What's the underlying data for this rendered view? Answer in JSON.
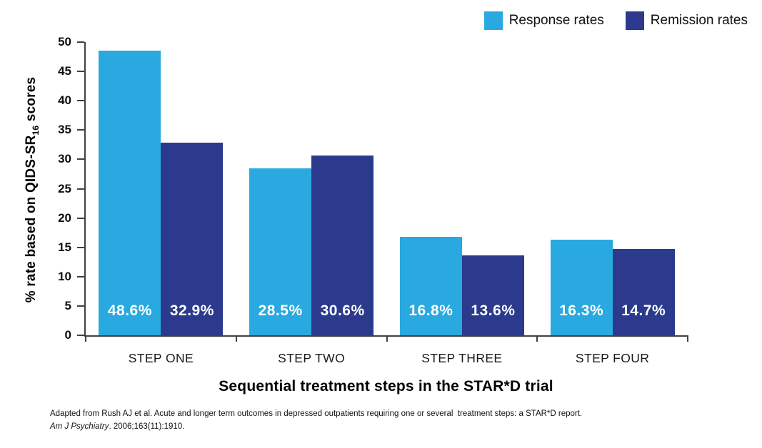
{
  "chart_data": {
    "type": "bar",
    "title": "",
    "categories": [
      "STEP ONE",
      "STEP TWO",
      "STEP THREE",
      "STEP FOUR"
    ],
    "series": [
      {
        "name": "Response rates",
        "color": "#29A9E0",
        "values": [
          48.6,
          28.5,
          16.8,
          16.3
        ],
        "bar_labels": [
          "48.6%",
          "28.5%",
          "16.8%",
          "16.3%"
        ]
      },
      {
        "name": "Remission rates",
        "color": "#2B3A8C",
        "values": [
          32.9,
          30.6,
          13.6,
          14.7
        ],
        "bar_labels": [
          "32.9%",
          "30.6%",
          "13.6%",
          "14.7%"
        ]
      }
    ],
    "xlabel": "Sequential treatment steps in the STAR*D trial",
    "ylabel": "% rate based on QIDS-SR16 scores",
    "ylabel_parts": {
      "pre": "% rate based on QIDS-SR",
      "sub": "16",
      "post": " scores"
    },
    "ylim": [
      0,
      50
    ],
    "yticks": [
      0,
      5,
      10,
      15,
      20,
      25,
      30,
      35,
      40,
      45,
      50
    ],
    "grid": false,
    "legend_position": "top-right"
  },
  "footnote": {
    "line1": "Adapted from Rush AJ et al. Acute and longer term outcomes in depressed outpatients requiring one or several  treatment steps: a STAR*D report.",
    "line2_italic": "Am J Psychiatry",
    "line2_rest": ". 2006;163(11):1910."
  }
}
